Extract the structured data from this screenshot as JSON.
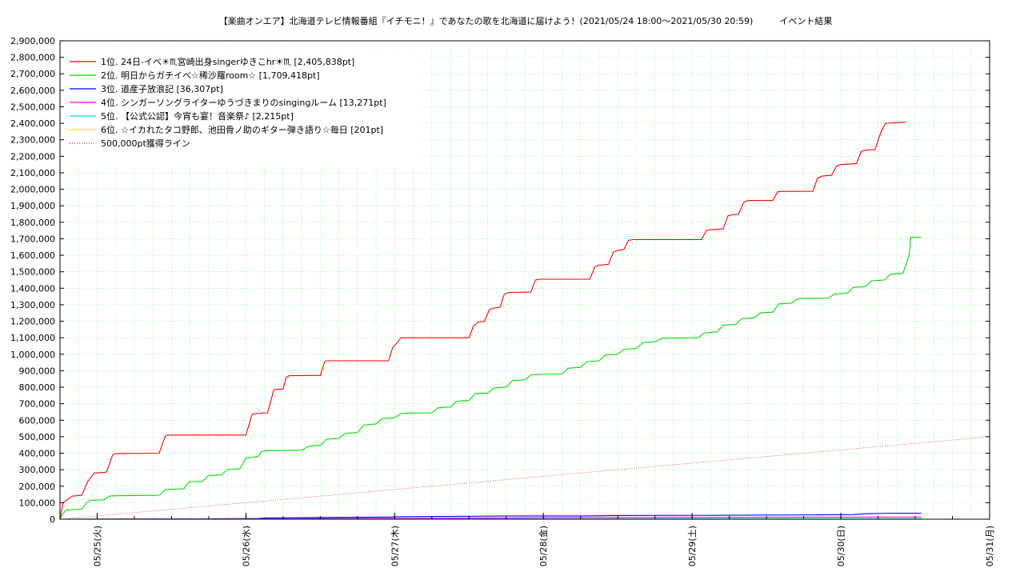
{
  "chart_data": {
    "type": "line",
    "title": "【楽曲オンエア】北海道テレビ情報番組『イチモニ！』であなたの歌を北海道に届けよう！(2021/05/24 18:00〜2021/05/30 20:59)　　　イベント結果",
    "xlabel": "",
    "ylabel": "",
    "ylim": [
      0,
      2900000
    ],
    "y_ticks": [
      "0",
      "100,000",
      "200,000",
      "300,000",
      "400,000",
      "500,000",
      "600,000",
      "700,000",
      "800,000",
      "900,000",
      "1,000,000",
      "1,100,000",
      "1,200,000",
      "1,300,000",
      "1,400,000",
      "1,500,000",
      "1,600,000",
      "1,700,000",
      "1,800,000",
      "1,900,000",
      "2,000,000",
      "2,100,000",
      "2,200,000",
      "2,300,000",
      "2,400,000",
      "2,500,000",
      "2,600,000",
      "2,700,000",
      "2,800,000",
      "2,900,000"
    ],
    "x_ticks": [
      "05/25(火)",
      "05/26(水)",
      "05/27(木)",
      "05/28(金)",
      "05/29(土)",
      "05/30(日)",
      "05/31(月)"
    ],
    "x_range_hours": [
      18,
      168
    ],
    "grid": true,
    "legend_position": "top-left",
    "series": [
      {
        "name": "1位. 24日-イベ☀♏宮崎出身singerゆきこhr☀♏ [2,405,838pt]",
        "color": "#ff0000",
        "points": [
          [
            18,
            0
          ],
          [
            18.5,
            100000
          ],
          [
            20,
            140000
          ],
          [
            21.5,
            145000
          ],
          [
            22.5,
            230000
          ],
          [
            23.5,
            280000
          ],
          [
            25.5,
            285000
          ],
          [
            26.5,
            390000
          ],
          [
            27,
            398000
          ],
          [
            34,
            400000
          ],
          [
            35,
            505000
          ],
          [
            35.5,
            510000
          ],
          [
            48,
            510000
          ],
          [
            49,
            635000
          ],
          [
            49.5,
            640000
          ],
          [
            51.5,
            645000
          ],
          [
            52.5,
            785000
          ],
          [
            54,
            790000
          ],
          [
            54.5,
            860000
          ],
          [
            55,
            870000
          ],
          [
            60,
            872000
          ],
          [
            60.7,
            955000
          ],
          [
            61,
            960000
          ],
          [
            68,
            960000
          ],
          [
            71,
            960000
          ],
          [
            71.7,
            1040000
          ],
          [
            72.5,
            1075000
          ],
          [
            73,
            1100000
          ],
          [
            78,
            1100000
          ],
          [
            84,
            1100000
          ],
          [
            84.7,
            1170000
          ],
          [
            85.5,
            1195000
          ],
          [
            86.5,
            1200000
          ],
          [
            87.3,
            1270000
          ],
          [
            88,
            1280000
          ],
          [
            89,
            1285000
          ],
          [
            89.7,
            1365000
          ],
          [
            90.5,
            1375000
          ],
          [
            94,
            1377000
          ],
          [
            94.7,
            1450000
          ],
          [
            95.5,
            1455000
          ],
          [
            103.5,
            1455000
          ],
          [
            104.3,
            1530000
          ],
          [
            105,
            1540000
          ],
          [
            106.5,
            1545000
          ],
          [
            107.3,
            1620000
          ],
          [
            108,
            1630000
          ],
          [
            109,
            1635000
          ],
          [
            109.7,
            1690000
          ],
          [
            110.5,
            1695000
          ],
          [
            121.5,
            1695000
          ],
          [
            122.3,
            1750000
          ],
          [
            123,
            1755000
          ],
          [
            125,
            1760000
          ],
          [
            125.8,
            1840000
          ],
          [
            126.5,
            1845000
          ],
          [
            127.5,
            1850000
          ],
          [
            128.3,
            1920000
          ],
          [
            129,
            1932000
          ],
          [
            133,
            1932000
          ],
          [
            133.8,
            1985000
          ],
          [
            134.5,
            1987000
          ],
          [
            139.5,
            1988000
          ],
          [
            140.2,
            2065000
          ],
          [
            141,
            2080000
          ],
          [
            142.5,
            2085000
          ],
          [
            143.3,
            2140000
          ],
          [
            144,
            2150000
          ],
          [
            146.5,
            2155000
          ],
          [
            147.3,
            2230000
          ],
          [
            148,
            2237000
          ],
          [
            149.5,
            2240000
          ],
          [
            150.5,
            2350000
          ],
          [
            151.2,
            2400000
          ],
          [
            154,
            2405838
          ],
          [
            154.5,
            2405838
          ]
        ]
      },
      {
        "name": "2位. 明日からガチイベ☆稀沙羅room☆ [1,709,418pt]",
        "color": "#00dd00",
        "points": [
          [
            18,
            0
          ],
          [
            18.5,
            35000
          ],
          [
            19,
            55000
          ],
          [
            20,
            58000
          ],
          [
            21.5,
            60000
          ],
          [
            22.3,
            100000
          ],
          [
            23,
            115000
          ],
          [
            25,
            117000
          ],
          [
            26,
            140000
          ],
          [
            27,
            142000
          ],
          [
            34,
            145000
          ],
          [
            35,
            180000
          ],
          [
            36,
            182000
          ],
          [
            38,
            185000
          ],
          [
            38.8,
            225000
          ],
          [
            40,
            228000
          ],
          [
            41,
            230000
          ],
          [
            42,
            265000
          ],
          [
            43,
            267000
          ],
          [
            44,
            268000
          ],
          [
            45,
            300000
          ],
          [
            46,
            303000
          ],
          [
            47,
            305000
          ],
          [
            48,
            370000
          ],
          [
            49,
            375000
          ],
          [
            50,
            380000
          ],
          [
            50.5,
            410000
          ],
          [
            51,
            415000
          ],
          [
            57,
            418000
          ],
          [
            58,
            440000
          ],
          [
            59,
            445000
          ],
          [
            60,
            447000
          ],
          [
            61,
            485000
          ],
          [
            62,
            488000
          ],
          [
            63,
            490000
          ],
          [
            64,
            520000
          ],
          [
            65,
            523000
          ],
          [
            66,
            525000
          ],
          [
            67,
            570000
          ],
          [
            68,
            575000
          ],
          [
            69,
            577000
          ],
          [
            70,
            610000
          ],
          [
            71,
            613000
          ],
          [
            72,
            615000
          ],
          [
            73,
            640000
          ],
          [
            74,
            643000
          ],
          [
            78,
            645000
          ],
          [
            79,
            675000
          ],
          [
            80,
            678000
          ],
          [
            81,
            680000
          ],
          [
            82,
            715000
          ],
          [
            83,
            718000
          ],
          [
            84,
            720000
          ],
          [
            85,
            760000
          ],
          [
            86,
            763000
          ],
          [
            87,
            765000
          ],
          [
            88,
            795000
          ],
          [
            89,
            798000
          ],
          [
            90,
            800000
          ],
          [
            91,
            840000
          ],
          [
            92,
            843000
          ],
          [
            93,
            845000
          ],
          [
            94,
            875000
          ],
          [
            95,
            878000
          ],
          [
            99,
            880000
          ],
          [
            100,
            915000
          ],
          [
            101,
            918000
          ],
          [
            102,
            920000
          ],
          [
            103,
            955000
          ],
          [
            104,
            958000
          ],
          [
            105,
            960000
          ],
          [
            106,
            995000
          ],
          [
            107,
            998000
          ],
          [
            108,
            1000000
          ],
          [
            109,
            1030000
          ],
          [
            110,
            1033000
          ],
          [
            111,
            1035000
          ],
          [
            112,
            1070000
          ],
          [
            113,
            1073000
          ],
          [
            114,
            1075000
          ],
          [
            115,
            1095000
          ],
          [
            116,
            1098000
          ],
          [
            121,
            1100000
          ],
          [
            122,
            1130000
          ],
          [
            123,
            1133000
          ],
          [
            124,
            1135000
          ],
          [
            125,
            1175000
          ],
          [
            126,
            1178000
          ],
          [
            127,
            1180000
          ],
          [
            128,
            1215000
          ],
          [
            129,
            1218000
          ],
          [
            130,
            1220000
          ],
          [
            131,
            1250000
          ],
          [
            132,
            1253000
          ],
          [
            133,
            1255000
          ],
          [
            134,
            1305000
          ],
          [
            135,
            1308000
          ],
          [
            136,
            1310000
          ],
          [
            137,
            1335000
          ],
          [
            138,
            1338000
          ],
          [
            142,
            1340000
          ],
          [
            143,
            1365000
          ],
          [
            144,
            1368000
          ],
          [
            145,
            1370000
          ],
          [
            146,
            1405000
          ],
          [
            147,
            1408000
          ],
          [
            148,
            1410000
          ],
          [
            149,
            1445000
          ],
          [
            150,
            1448000
          ],
          [
            151,
            1450000
          ],
          [
            152,
            1485000
          ],
          [
            153,
            1488000
          ],
          [
            154,
            1490000
          ],
          [
            154.7,
            1560000
          ],
          [
            155,
            1600000
          ],
          [
            155.3,
            1709418
          ],
          [
            157,
            1709418
          ]
        ]
      },
      {
        "name": "3位. 道産子放浪記 [36,307pt]",
        "color": "#0000ff",
        "points": [
          [
            18,
            0
          ],
          [
            40,
            2000
          ],
          [
            50,
            5000
          ],
          [
            51,
            8000
          ],
          [
            60,
            10000
          ],
          [
            71,
            13000
          ],
          [
            72,
            15000
          ],
          [
            84,
            18000
          ],
          [
            90,
            20000
          ],
          [
            103,
            20000
          ],
          [
            110,
            23000
          ],
          [
            125,
            24000
          ],
          [
            140,
            26000
          ],
          [
            146,
            28000
          ],
          [
            148,
            33000
          ],
          [
            152,
            36307
          ],
          [
            157,
            36307
          ]
        ]
      },
      {
        "name": "4位. シンガーソングライターゆうづきまりのsingingルーム [13,271pt]",
        "color": "#ff00ff",
        "points": [
          [
            18,
            0
          ],
          [
            50,
            3000
          ],
          [
            72,
            6000
          ],
          [
            96,
            9000
          ],
          [
            120,
            11000
          ],
          [
            140,
            12500
          ],
          [
            157,
            13271
          ]
        ]
      },
      {
        "name": "5位. 【公式公認】今宵も宴！音楽祭♪ [2,215pt]",
        "color": "#00dddd",
        "points": [
          [
            18,
            0
          ],
          [
            72,
            1200
          ],
          [
            120,
            2000
          ],
          [
            157,
            2215
          ]
        ]
      },
      {
        "name": "6位. ☆イカれたタコ野郎、池田骨ノ助のギター弾き語り☆毎日 [201pt]",
        "color": "#ffdd00",
        "points": [
          [
            18,
            0
          ],
          [
            80,
            150
          ],
          [
            157,
            201
          ]
        ]
      },
      {
        "name": "500,000pt獲得ライン",
        "color": "#cc3333",
        "dashed": true,
        "points": [
          [
            18,
            0
          ],
          [
            168,
            500000
          ]
        ]
      }
    ]
  }
}
